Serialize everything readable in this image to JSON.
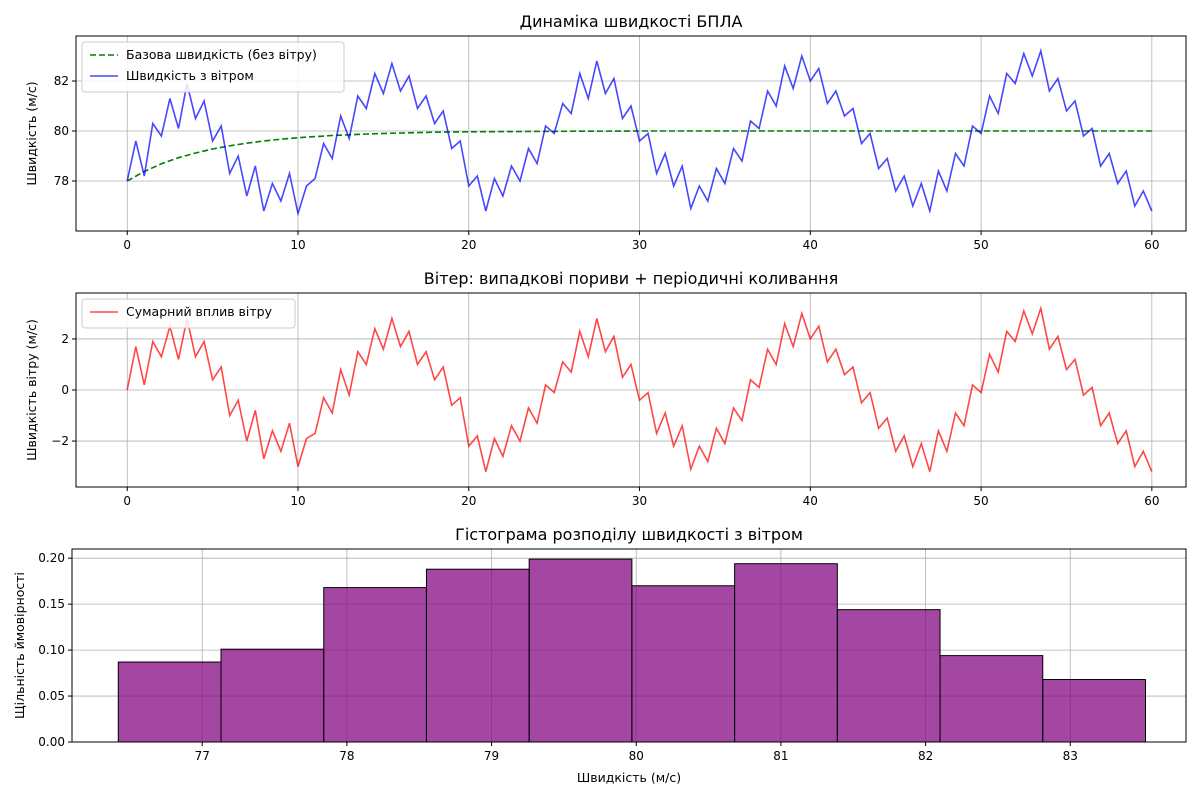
{
  "colors": {
    "base": "#008000",
    "wind_speed": "#0000ff",
    "wind": "#ff0000",
    "hist": "#800080"
  },
  "chart_data": [
    {
      "type": "line",
      "title": "Динаміка швидкості БПЛА",
      "xlabel": "",
      "ylabel": "Швидкість (м/с)",
      "xlim": [
        -3,
        62
      ],
      "ylim": [
        76.0,
        83.8
      ],
      "xticks": [
        0,
        10,
        20,
        30,
        40,
        50,
        60
      ],
      "yticks": [
        78,
        80,
        82
      ],
      "grid": true,
      "legend_position": "top-left",
      "series": [
        {
          "name": "Базова швидкість (без вітру)",
          "style": "dashed",
          "color": "#008000",
          "x": [
            0,
            1,
            2,
            3,
            4,
            5,
            6,
            7,
            8,
            9,
            10,
            12,
            14,
            16,
            18,
            20,
            25,
            30,
            40,
            50,
            60
          ],
          "y": [
            78.0,
            78.38,
            78.69,
            78.93,
            79.12,
            79.28,
            79.41,
            79.51,
            79.6,
            79.67,
            79.73,
            79.82,
            79.88,
            79.92,
            79.95,
            79.97,
            79.99,
            80.0,
            80.0,
            80.0,
            80.0
          ]
        },
        {
          "name": "Швидкість з вітром",
          "style": "solid",
          "color": "#0000ff",
          "x": [
            0,
            0.5,
            1,
            1.5,
            2,
            2.5,
            3,
            3.5,
            4,
            4.5,
            5,
            5.5,
            6,
            6.5,
            7,
            7.5,
            8,
            8.5,
            9,
            9.5,
            10,
            10.5,
            11,
            11.5,
            12,
            12.5,
            13,
            13.5,
            14,
            14.5,
            15,
            15.5,
            16,
            16.5,
            17,
            17.5,
            18,
            18.5,
            19,
            19.5,
            20,
            20.5,
            21,
            21.5,
            22,
            22.5,
            23,
            23.5,
            24,
            24.5,
            25,
            25.5,
            26,
            26.5,
            27,
            27.5,
            28,
            28.5,
            29,
            29.5,
            30,
            30.5,
            31,
            31.5,
            32,
            32.5,
            33,
            33.5,
            34,
            34.5,
            35,
            35.5,
            36,
            36.5,
            37,
            37.5,
            38,
            38.5,
            39,
            39.5,
            40,
            40.5,
            41,
            41.5,
            42,
            42.5,
            43,
            43.5,
            44,
            44.5,
            45,
            45.5,
            46,
            46.5,
            47,
            47.5,
            48,
            48.5,
            49,
            49.5,
            50,
            50.5,
            51,
            51.5,
            52,
            52.5,
            53,
            53.5,
            54,
            54.5,
            55,
            55.5,
            56,
            56.5,
            57,
            57.5,
            58,
            58.5,
            59,
            59.5,
            60
          ],
          "y": [
            78.0,
            79.6,
            78.2,
            80.3,
            79.8,
            81.3,
            80.1,
            81.9,
            80.5,
            81.2,
            79.6,
            80.2,
            78.3,
            79.0,
            77.4,
            78.6,
            76.8,
            77.9,
            77.2,
            78.3,
            76.7,
            77.8,
            78.1,
            79.5,
            78.9,
            80.6,
            79.7,
            81.4,
            80.9,
            82.3,
            81.5,
            82.7,
            81.6,
            82.2,
            80.9,
            81.4,
            80.3,
            80.8,
            79.3,
            79.6,
            77.8,
            78.2,
            76.8,
            78.1,
            77.4,
            78.6,
            78.0,
            79.3,
            78.7,
            80.2,
            79.9,
            81.1,
            80.7,
            82.3,
            81.3,
            82.8,
            81.5,
            82.1,
            80.5,
            81.0,
            79.6,
            79.9,
            78.3,
            79.1,
            77.8,
            78.6,
            76.9,
            77.8,
            77.2,
            78.5,
            77.9,
            79.3,
            78.8,
            80.4,
            80.1,
            81.6,
            81.0,
            82.6,
            81.7,
            83.0,
            82.0,
            82.5,
            81.1,
            81.6,
            80.6,
            80.9,
            79.5,
            79.9,
            78.5,
            78.9,
            77.6,
            78.2,
            77.0,
            77.9,
            76.8,
            78.4,
            77.6,
            79.1,
            78.6,
            80.2,
            79.9,
            81.4,
            80.7,
            82.3,
            81.9,
            83.1,
            82.2,
            83.2,
            81.6,
            82.1,
            80.8,
            81.2,
            79.8,
            80.1,
            78.6,
            79.1,
            77.9,
            78.4,
            77.0,
            77.6,
            76.8
          ]
        }
      ]
    },
    {
      "type": "line",
      "title": "Вітер: випадкові пориви + періодичні коливання",
      "xlabel": "",
      "ylabel": "Швидкість вітру (м/с)",
      "xlim": [
        -3,
        62
      ],
      "ylim": [
        -3.8,
        3.8
      ],
      "xticks": [
        0,
        10,
        20,
        30,
        40,
        50,
        60
      ],
      "yticks": [
        -2,
        0,
        2
      ],
      "grid": true,
      "legend_position": "top-left",
      "series": [
        {
          "name": "Сумарний вплив вітру",
          "style": "solid",
          "color": "#ff0000",
          "x": [
            0,
            0.5,
            1,
            1.5,
            2,
            2.5,
            3,
            3.5,
            4,
            4.5,
            5,
            5.5,
            6,
            6.5,
            7,
            7.5,
            8,
            8.5,
            9,
            9.5,
            10,
            10.5,
            11,
            11.5,
            12,
            12.5,
            13,
            13.5,
            14,
            14.5,
            15,
            15.5,
            16,
            16.5,
            17,
            17.5,
            18,
            18.5,
            19,
            19.5,
            20,
            20.5,
            21,
            21.5,
            22,
            22.5,
            23,
            23.5,
            24,
            24.5,
            25,
            25.5,
            26,
            26.5,
            27,
            27.5,
            28,
            28.5,
            29,
            29.5,
            30,
            30.5,
            31,
            31.5,
            32,
            32.5,
            33,
            33.5,
            34,
            34.5,
            35,
            35.5,
            36,
            36.5,
            37,
            37.5,
            38,
            38.5,
            39,
            39.5,
            40,
            40.5,
            41,
            41.5,
            42,
            42.5,
            43,
            43.5,
            44,
            44.5,
            45,
            45.5,
            46,
            46.5,
            47,
            47.5,
            48,
            48.5,
            49,
            49.5,
            50,
            50.5,
            51,
            51.5,
            52,
            52.5,
            53,
            53.5,
            54,
            54.5,
            55,
            55.5,
            56,
            56.5,
            57,
            57.5,
            58,
            58.5,
            59,
            59.5,
            60
          ],
          "y": [
            0.0,
            1.7,
            0.2,
            1.9,
            1.3,
            2.5,
            1.2,
            2.8,
            1.3,
            1.9,
            0.4,
            0.9,
            -1.0,
            -0.4,
            -2.0,
            -0.8,
            -2.7,
            -1.6,
            -2.4,
            -1.3,
            -3.0,
            -1.9,
            -1.7,
            -0.3,
            -0.9,
            0.8,
            -0.2,
            1.5,
            1.0,
            2.4,
            1.6,
            2.8,
            1.7,
            2.3,
            1.0,
            1.5,
            0.4,
            0.9,
            -0.6,
            -0.3,
            -2.2,
            -1.8,
            -3.2,
            -1.9,
            -2.6,
            -1.4,
            -2.0,
            -0.7,
            -1.3,
            0.2,
            -0.1,
            1.1,
            0.7,
            2.3,
            1.3,
            2.8,
            1.5,
            2.1,
            0.5,
            1.0,
            -0.4,
            -0.1,
            -1.7,
            -0.9,
            -2.2,
            -1.4,
            -3.1,
            -2.2,
            -2.8,
            -1.5,
            -2.1,
            -0.7,
            -1.2,
            0.4,
            0.1,
            1.6,
            1.0,
            2.6,
            1.7,
            3.0,
            2.0,
            2.5,
            1.1,
            1.6,
            0.6,
            0.9,
            -0.5,
            -0.1,
            -1.5,
            -1.1,
            -2.4,
            -1.8,
            -3.0,
            -2.1,
            -3.2,
            -1.6,
            -2.4,
            -0.9,
            -1.4,
            0.2,
            -0.1,
            1.4,
            0.7,
            2.3,
            1.9,
            3.1,
            2.2,
            3.2,
            1.6,
            2.1,
            0.8,
            1.2,
            -0.2,
            0.1,
            -1.4,
            -0.9,
            -2.1,
            -1.6,
            -3.0,
            -2.4,
            -3.2
          ]
        }
      ]
    },
    {
      "type": "bar",
      "title": "Гістограма розподілу швидкості з вітром",
      "xlabel": "Швидкість (м/с)",
      "ylabel": "Щільність ймовірності",
      "xlim": [
        76.1,
        83.8
      ],
      "ylim": [
        0.0,
        0.21
      ],
      "xticks": [
        77,
        78,
        79,
        80,
        81,
        82,
        83
      ],
      "yticks": [
        0.0,
        0.05,
        0.1,
        0.15,
        0.2
      ],
      "grid": true,
      "bin_edges": [
        76.42,
        77.13,
        77.84,
        78.55,
        79.26,
        79.97,
        80.68,
        81.39,
        82.1,
        82.81,
        83.52
      ],
      "values": [
        0.087,
        0.101,
        0.168,
        0.188,
        0.199,
        0.17,
        0.194,
        0.144,
        0.094,
        0.068
      ]
    }
  ]
}
